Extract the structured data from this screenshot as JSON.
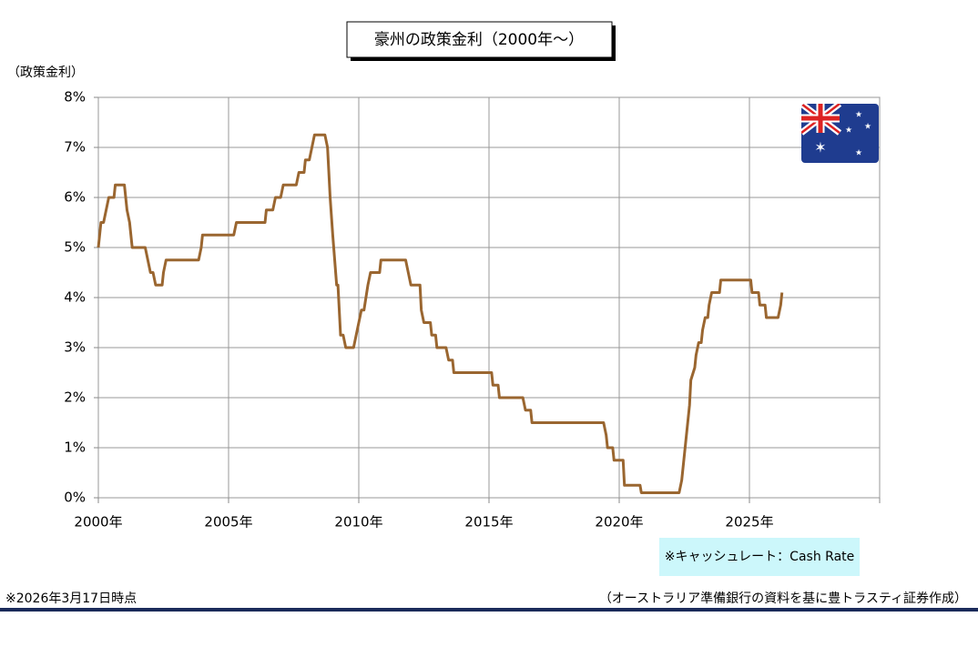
{
  "chart_data": {
    "type": "line",
    "title": "豪州の政策金利（2000年～）",
    "y_label": "（政策金利）",
    "note": "※キャッシュレート：Cash Rate",
    "footnote_left": "※2026年3月17日時点",
    "footnote_right": "（オーストラリア準備銀行の資料を基に豊トラスティ証券作成）",
    "xlim": [
      2000,
      2030
    ],
    "ylim": [
      0,
      8
    ],
    "xticks": [
      {
        "value": 2000,
        "label": "2000年"
      },
      {
        "value": 2005,
        "label": "2005年"
      },
      {
        "value": 2010,
        "label": "2010年"
      },
      {
        "value": 2015,
        "label": "2015年"
      },
      {
        "value": 2020,
        "label": "2020年"
      },
      {
        "value": 2025,
        "label": "2025年"
      },
      2030
    ],
    "yticks": [
      {
        "value": 0,
        "label": "0%"
      },
      {
        "value": 1,
        "label": "1%"
      },
      {
        "value": 2,
        "label": "2%"
      },
      {
        "value": 3,
        "label": "3%"
      },
      {
        "value": 4,
        "label": "4%"
      },
      {
        "value": 5,
        "label": "5%"
      },
      {
        "value": 6,
        "label": "6%"
      },
      {
        "value": 7,
        "label": "7%"
      },
      {
        "value": 8,
        "label": "8%"
      }
    ],
    "grid": true,
    "series": [
      {
        "color": "#9a6630",
        "x": [
          2000.0,
          2000.1,
          2000.2,
          2000.3,
          2000.4,
          2000.6,
          2000.65,
          2001.0,
          2001.1,
          2001.2,
          2001.3,
          2001.8,
          2001.9,
          2002.0,
          2002.1,
          2002.2,
          2002.45,
          2002.5,
          2002.6,
          2003.85,
          2003.95,
          2004.0,
          2005.2,
          2005.3,
          2006.4,
          2006.45,
          2006.7,
          2006.8,
          2007.0,
          2007.1,
          2007.6,
          2007.7,
          2007.9,
          2007.95,
          2008.1,
          2008.2,
          2008.3,
          2008.7,
          2008.8,
          2008.9,
          2009.0,
          2009.15,
          2009.2,
          2009.3,
          2009.4,
          2009.5,
          2009.8,
          2009.9,
          2010.0,
          2010.1,
          2010.2,
          2010.35,
          2010.45,
          2010.8,
          2010.85,
          2011.8,
          2011.9,
          2012.0,
          2012.35,
          2012.4,
          2012.5,
          2012.75,
          2012.8,
          2012.95,
          2013.0,
          2013.35,
          2013.45,
          2013.6,
          2013.65,
          2015.1,
          2015.15,
          2015.35,
          2015.4,
          2016.3,
          2016.4,
          2016.6,
          2016.65,
          2019.4,
          2019.5,
          2019.55,
          2019.75,
          2019.8,
          2020.15,
          2020.2,
          2020.8,
          2020.85,
          2022.3,
          2022.4,
          2022.5,
          2022.6,
          2022.7,
          2022.75,
          2022.9,
          2022.95,
          2023.05,
          2023.15,
          2023.2,
          2023.3,
          2023.4,
          2023.45,
          2023.55,
          2023.85,
          2023.9,
          2025.05,
          2025.1,
          2025.35,
          2025.4,
          2025.6,
          2025.65,
          2026.1,
          2026.2,
          2026.25
        ],
        "values": [
          5.0,
          5.5,
          5.5,
          5.75,
          6.0,
          6.0,
          6.25,
          6.25,
          5.75,
          5.5,
          5.0,
          5.0,
          4.75,
          4.5,
          4.5,
          4.25,
          4.25,
          4.5,
          4.75,
          4.75,
          5.0,
          5.25,
          5.25,
          5.5,
          5.5,
          5.75,
          5.75,
          6.0,
          6.0,
          6.25,
          6.25,
          6.5,
          6.5,
          6.75,
          6.75,
          7.0,
          7.25,
          7.25,
          7.0,
          6.0,
          5.25,
          4.25,
          4.25,
          3.25,
          3.25,
          3.0,
          3.0,
          3.25,
          3.5,
          3.75,
          3.75,
          4.25,
          4.5,
          4.5,
          4.75,
          4.75,
          4.5,
          4.25,
          4.25,
          3.75,
          3.5,
          3.5,
          3.25,
          3.25,
          3.0,
          3.0,
          2.75,
          2.75,
          2.5,
          2.5,
          2.25,
          2.25,
          2.0,
          2.0,
          1.75,
          1.75,
          1.5,
          1.5,
          1.25,
          1.0,
          1.0,
          0.75,
          0.75,
          0.25,
          0.25,
          0.1,
          0.1,
          0.35,
          0.85,
          1.35,
          1.85,
          2.35,
          2.6,
          2.85,
          3.1,
          3.1,
          3.35,
          3.6,
          3.6,
          3.85,
          4.1,
          4.1,
          4.35,
          4.35,
          4.1,
          4.1,
          3.85,
          3.85,
          3.6,
          3.6,
          3.85,
          4.1
        ]
      }
    ]
  }
}
